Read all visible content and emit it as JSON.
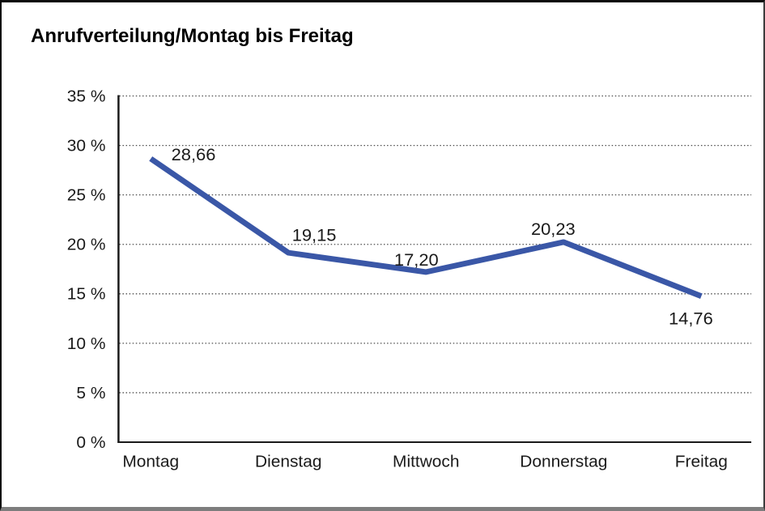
{
  "frame": {
    "background": "#ffffff",
    "border_color": "#0a0a0a",
    "bottom_border_color": "#7d7d7d"
  },
  "chart_data": {
    "type": "line",
    "title": "Anrufverteilung/Montag bis Freitag",
    "categories": [
      "Montag",
      "Dienstag",
      "Mittwoch",
      "Donnerstag",
      "Freitag"
    ],
    "values": [
      28.66,
      19.15,
      17.2,
      20.23,
      14.76
    ],
    "point_labels": [
      "28,66",
      "19,15",
      "17,20",
      "20,23",
      "14,76"
    ],
    "y_tick_labels": [
      "0 %",
      "5 %",
      "10 %",
      "15 %",
      "20 %",
      "25 %",
      "30 %",
      "35 %"
    ],
    "y_tick_values": [
      0,
      5,
      10,
      15,
      20,
      25,
      30,
      35
    ],
    "ylim": [
      0,
      35
    ],
    "xlabel": "",
    "ylabel": "",
    "grid": "horizontal-dotted",
    "legend": "none",
    "line_color": "#3A57A7",
    "axis_color": "#1a1a1a",
    "grid_color": "#4d4d4d"
  }
}
